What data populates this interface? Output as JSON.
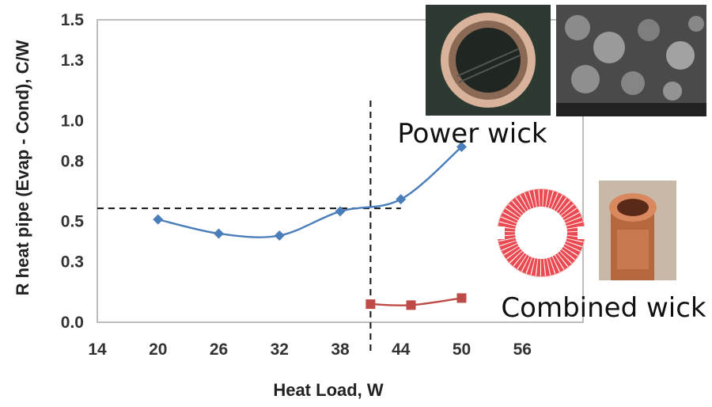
{
  "chart_data": {
    "type": "line",
    "title": "",
    "xlabel": "Heat Load, W",
    "ylabel": "R heat pipe (Evap - Cond),  C/W",
    "xlim": [
      14,
      62
    ],
    "ylim": [
      0,
      1.5
    ],
    "x_ticks": [
      "14",
      "20",
      "26",
      "32",
      "38",
      "44",
      "50",
      "56"
    ],
    "y_ticks": [
      "0.0",
      "0.3",
      "0.5",
      "0.8",
      "1.0",
      "1.3",
      "1.5"
    ],
    "series": [
      {
        "name": "Power wick",
        "color": "#4a7ebb",
        "marker": "diamond",
        "smooth": true,
        "points": [
          [
            20,
            0.51
          ],
          [
            26,
            0.44
          ],
          [
            32,
            0.43
          ],
          [
            38,
            0.55
          ],
          [
            44,
            0.61
          ],
          [
            50,
            0.87
          ]
        ]
      },
      {
        "name": "Combined wick",
        "color": "#be4b48",
        "marker": "square",
        "smooth": true,
        "points": [
          [
            41,
            0.09
          ],
          [
            45,
            0.085
          ],
          [
            50,
            0.12
          ]
        ]
      }
    ],
    "reference_lines": [
      {
        "orientation": "horizontal",
        "value": 0.565,
        "x_from": 14,
        "x_to": 44,
        "style": "dashed",
        "color": "#111111"
      },
      {
        "orientation": "vertical",
        "value": 41,
        "style": "dashed",
        "color": "#111111"
      }
    ],
    "annotations": [
      {
        "text": "Power wick",
        "anchor": "top-right"
      },
      {
        "text": "Combined wick",
        "anchor": "bottom-right"
      }
    ],
    "images": [
      {
        "name": "power-wick-cross-section-photo"
      },
      {
        "name": "power-wick-sem-micrograph"
      },
      {
        "name": "combined-wick-diagram"
      },
      {
        "name": "combined-wick-pipe-photo"
      }
    ]
  }
}
